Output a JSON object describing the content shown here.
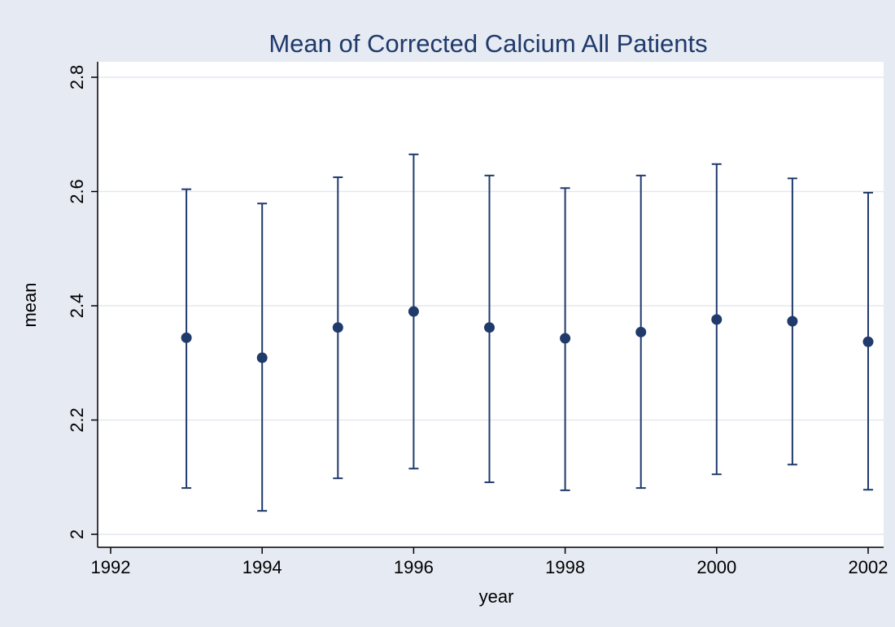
{
  "chart_data": {
    "type": "errorbar",
    "title": "Mean of Corrected Calcium All Patients",
    "x_label": "year",
    "y_label": "mean",
    "x": [
      1993,
      1994,
      1995,
      1996,
      1997,
      1998,
      1999,
      2000,
      2001,
      2002
    ],
    "values": [
      2.344,
      2.309,
      2.362,
      2.39,
      2.362,
      2.343,
      2.354,
      2.376,
      2.373,
      2.337
    ],
    "lower": [
      2.081,
      2.041,
      2.098,
      2.115,
      2.091,
      2.077,
      2.081,
      2.105,
      2.122,
      2.078
    ],
    "upper": [
      2.604,
      2.579,
      2.625,
      2.665,
      2.628,
      2.606,
      2.628,
      2.648,
      2.623,
      2.598
    ],
    "color": "#1f3a6b",
    "xlim": [
      1992,
      2002
    ],
    "xticks": [
      1992,
      1994,
      1996,
      1998,
      2000,
      2002
    ],
    "ylim": [
      2,
      2.8
    ],
    "yticks": [
      2,
      2.2,
      2.4,
      2.6,
      2.8
    ],
    "grid": true
  }
}
